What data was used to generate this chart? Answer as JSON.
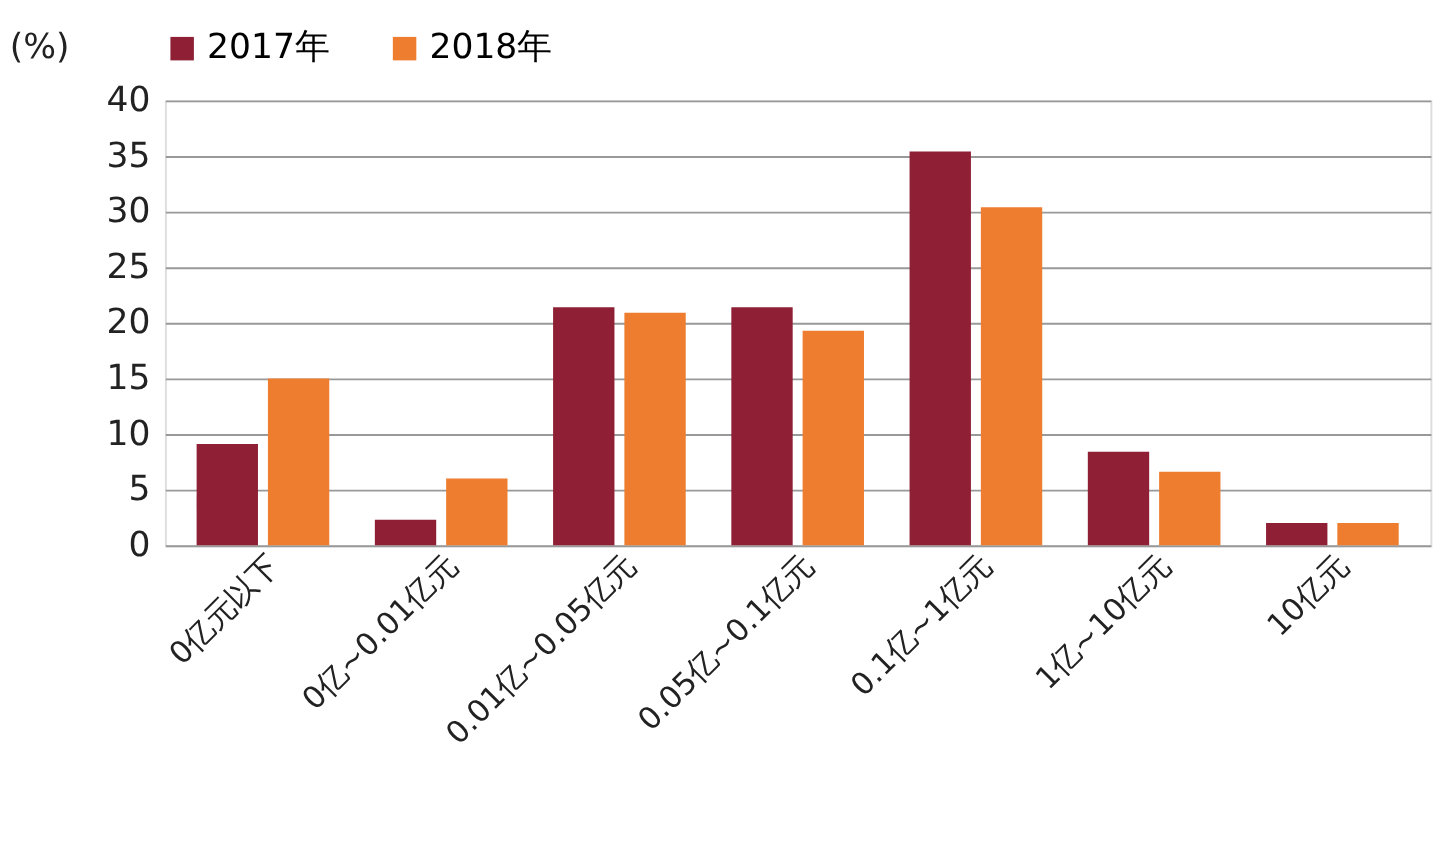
{
  "chart_data": {
    "type": "bar",
    "ylabel": "(%)",
    "categories": [
      "0亿元以下",
      "0亿~0.01亿元",
      "0.01亿~0.05亿元",
      "0.05亿~0.1亿元",
      "0.1亿~1亿元",
      "1亿~10亿元",
      "10亿元"
    ],
    "series": [
      {
        "name": "2017年",
        "color": "#8e1f35",
        "values": [
          9.1,
          2.3,
          21.4,
          21.4,
          35.4,
          8.4,
          2.0
        ]
      },
      {
        "name": "2018年",
        "color": "#ee7d2f",
        "values": [
          15.0,
          6.0,
          20.9,
          19.3,
          30.4,
          6.6,
          2.0
        ]
      }
    ],
    "ylim": [
      0,
      40
    ],
    "yticks": [
      0,
      5,
      10,
      15,
      20,
      25,
      30,
      35,
      40
    ],
    "grid": "y",
    "legend": "top"
  }
}
